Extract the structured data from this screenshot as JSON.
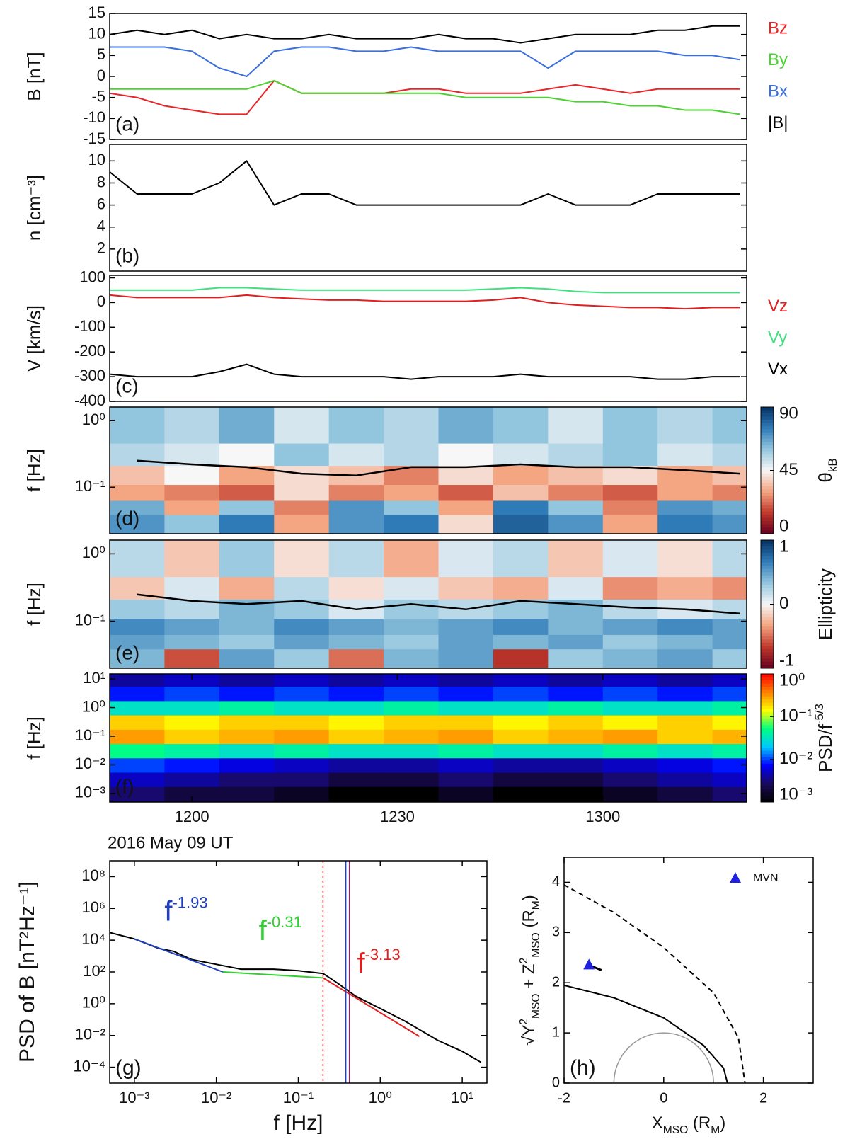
{
  "chart_data": [
    {
      "type": "line",
      "label": "(a)",
      "ylabel": "B [nT]",
      "xlim": [
        708,
        801
      ],
      "ylim": [
        -15,
        15
      ],
      "yticks": [
        -15,
        -10,
        -5,
        0,
        5,
        10,
        15
      ],
      "legend": "right",
      "x": [
        708,
        712,
        716,
        720,
        724,
        728,
        732,
        736,
        740,
        744,
        748,
        752,
        756,
        760,
        764,
        768,
        772,
        776,
        780,
        784,
        788,
        792,
        796,
        800
      ],
      "series": [
        {
          "name": "Bz",
          "color": "#e8262a",
          "values": [
            -4,
            -5,
            -7,
            -8,
            -9,
            -9,
            -1,
            -4,
            -4,
            -4,
            -4,
            -3,
            -3,
            -4,
            -4,
            -4,
            -3,
            -2,
            -3,
            -4,
            -3,
            -3,
            -3,
            -3
          ]
        },
        {
          "name": "By",
          "color": "#4cd232",
          "values": [
            -3,
            -3,
            -3,
            -3,
            -3,
            -3,
            -1,
            -4,
            -4,
            -4,
            -4,
            -4,
            -4,
            -5,
            -5,
            -5,
            -5,
            -6,
            -6,
            -7,
            -7,
            -8,
            -8,
            -9
          ]
        },
        {
          "name": "Bx",
          "color": "#3a6fe0",
          "values": [
            7,
            7,
            7,
            6,
            2,
            0,
            6,
            7,
            7,
            6,
            6,
            7,
            6,
            6,
            6,
            6,
            2,
            6,
            6,
            6,
            6,
            5,
            5,
            4
          ]
        },
        {
          "name": "|B|",
          "color": "#000000",
          "values": [
            10,
            11,
            10,
            11,
            9,
            10,
            9,
            9,
            10,
            9,
            9,
            9,
            10,
            9,
            9,
            8,
            9,
            10,
            10,
            10,
            11,
            11,
            12,
            12
          ]
        }
      ]
    },
    {
      "type": "line",
      "label": "(b)",
      "ylabel": "n [cm⁻³]",
      "xlim": [
        708,
        801
      ],
      "ylim": [
        0,
        11.5
      ],
      "yticks": [
        2,
        4,
        6,
        8,
        10
      ],
      "x": [
        708,
        712,
        716,
        720,
        724,
        728,
        732,
        736,
        740,
        744,
        748,
        752,
        756,
        760,
        764,
        768,
        772,
        776,
        780,
        784,
        788,
        792,
        796,
        800
      ],
      "series": [
        {
          "color": "#000000",
          "values": [
            9,
            7,
            7,
            7,
            8,
            10,
            6,
            7,
            7,
            6,
            6,
            6,
            6,
            6,
            6,
            6,
            7,
            6,
            6,
            6,
            7,
            7,
            7,
            7
          ]
        }
      ]
    },
    {
      "type": "line",
      "label": "(c)",
      "ylabel": "V [km/s]",
      "xlim": [
        708,
        801
      ],
      "ylim": [
        -400,
        110
      ],
      "yticks": [
        100,
        0,
        -100,
        -200,
        -300,
        -400
      ],
      "legend": "right",
      "x": [
        708,
        712,
        716,
        720,
        724,
        728,
        732,
        736,
        740,
        744,
        748,
        752,
        756,
        760,
        764,
        768,
        772,
        776,
        780,
        784,
        788,
        792,
        796,
        800
      ],
      "series": [
        {
          "name": "Vz",
          "color": "#e02020",
          "values": [
            30,
            20,
            20,
            20,
            20,
            30,
            20,
            15,
            10,
            10,
            5,
            5,
            5,
            5,
            10,
            20,
            0,
            -10,
            -15,
            -20,
            -20,
            -25,
            -20,
            -20
          ]
        },
        {
          "name": "Vy",
          "color": "#40e080",
          "values": [
            50,
            50,
            50,
            50,
            60,
            60,
            55,
            50,
            50,
            50,
            50,
            50,
            50,
            50,
            55,
            60,
            55,
            45,
            40,
            40,
            40,
            40,
            40,
            40
          ]
        },
        {
          "name": "Vx",
          "color": "#000000",
          "values": [
            -290,
            -300,
            -300,
            -300,
            -280,
            -250,
            -290,
            -300,
            -300,
            -300,
            -300,
            -310,
            -300,
            -300,
            -300,
            -290,
            -300,
            -300,
            -300,
            -300,
            -310,
            -310,
            -300,
            -300
          ]
        }
      ]
    },
    {
      "type": "heatmap",
      "label": "(d)",
      "ylabel": "f [Hz]",
      "xlim": [
        708,
        801
      ],
      "ylim": [
        0.02,
        1.6
      ],
      "ylog": true,
      "yticks": [
        {
          "value": 1,
          "label": "10⁰"
        },
        {
          "value": 0.1,
          "label": "10⁻¹"
        }
      ],
      "colormap": "RdBu",
      "zlim": [
        0,
        90
      ],
      "zticks": [
        0,
        45,
        90
      ],
      "zlabel": [
        {
          "text": "θ"
        },
        {
          "text": "kB",
          "sub": true
        }
      ],
      "x": [
        712,
        720,
        728,
        736,
        744,
        752,
        760,
        768,
        776,
        784,
        792,
        800
      ],
      "y": [
        0.03,
        0.05,
        0.08,
        0.15,
        0.3,
        0.7
      ],
      "z": [
        [
          70,
          60,
          75,
          30,
          70,
          75,
          40,
          80,
          70,
          30,
          75,
          70
        ],
        [
          65,
          30,
          60,
          25,
          70,
          60,
          30,
          75,
          60,
          25,
          70,
          65
        ],
        [
          30,
          25,
          20,
          40,
          25,
          30,
          20,
          35,
          25,
          20,
          30,
          25
        ],
        [
          35,
          45,
          30,
          40,
          35,
          25,
          40,
          30,
          35,
          40,
          30,
          35
        ],
        [
          55,
          50,
          45,
          60,
          50,
          55,
          45,
          50,
          55,
          60,
          50,
          55
        ],
        [
          60,
          55,
          65,
          50,
          60,
          55,
          65,
          60,
          50,
          60,
          55,
          60
        ]
      ],
      "lines": [
        {
          "color": "#000000",
          "values": [
            0.25,
            0.22,
            0.2,
            0.16,
            0.15,
            0.2,
            0.2,
            0.22,
            0.2,
            0.2,
            0.18,
            0.16
          ]
        }
      ]
    },
    {
      "type": "heatmap",
      "label": "(e)",
      "ylabel": "f [Hz]",
      "xlim": [
        708,
        801
      ],
      "ylim": [
        0.02,
        1.6
      ],
      "ylog": true,
      "yticks": [
        {
          "value": 1,
          "label": "10⁰"
        },
        {
          "value": 0.1,
          "label": "10⁻¹"
        }
      ],
      "colormap": "RdBu",
      "zlim": [
        -1,
        1
      ],
      "zticks": [
        -1,
        0,
        1
      ],
      "zlabel": "Ellipticity",
      "x": [
        712,
        720,
        728,
        736,
        744,
        752,
        760,
        768,
        776,
        784,
        792,
        800
      ],
      "y": [
        0.03,
        0.05,
        0.08,
        0.15,
        0.3,
        0.7
      ],
      "z": [
        [
          0.4,
          -0.6,
          0.5,
          0.3,
          -0.5,
          0.4,
          0.5,
          -0.7,
          0.3,
          0.4,
          0.5,
          0.3
        ],
        [
          0.5,
          0.4,
          0.3,
          0.5,
          0.4,
          0.3,
          0.5,
          0.4,
          0.5,
          0.3,
          0.4,
          0.5
        ],
        [
          0.6,
          0.5,
          0.4,
          0.6,
          0.5,
          0.4,
          0.5,
          0.6,
          0.4,
          0.5,
          0.6,
          0.5
        ],
        [
          0.3,
          0.2,
          0.4,
          0.3,
          0.1,
          0.3,
          0.2,
          0.3,
          0.4,
          0.2,
          0.1,
          0.2
        ],
        [
          -0.2,
          0.1,
          -0.3,
          0.2,
          -0.1,
          0.1,
          -0.2,
          -0.3,
          0.1,
          -0.4,
          -0.3,
          -0.4
        ],
        [
          0.2,
          -0.2,
          0.3,
          -0.1,
          0.2,
          -0.3,
          0.1,
          0.2,
          -0.2,
          0.1,
          -0.1,
          0.2
        ]
      ],
      "lines": [
        {
          "color": "#000000",
          "values": [
            0.25,
            0.2,
            0.18,
            0.2,
            0.15,
            0.18,
            0.15,
            0.2,
            0.18,
            0.16,
            0.15,
            0.13
          ]
        }
      ]
    },
    {
      "type": "heatmap",
      "label": "(f)",
      "ylabel": "f [Hz]",
      "xlim": [
        708,
        801
      ],
      "ylim": [
        0.0005,
        15
      ],
      "ylog": true,
      "yticks": [
        {
          "value": 10,
          "label": "10¹"
        },
        {
          "value": 1,
          "label": "10⁰"
        },
        {
          "value": 0.1,
          "label": "10⁻¹"
        },
        {
          "value": 0.01,
          "label": "10⁻²"
        },
        {
          "value": 0.001,
          "label": "10⁻³"
        }
      ],
      "xticks": [
        {
          "value": 720,
          "label": "1200"
        },
        {
          "value": 750,
          "label": "1230"
        },
        {
          "value": 780,
          "label": "1300"
        }
      ],
      "colormap": "jet",
      "zlog": true,
      "zlim": [
        0.001,
        1
      ],
      "zticks": [
        {
          "value": 1,
          "label": "10⁰"
        },
        {
          "value": 0.1,
          "label": "10⁻¹"
        },
        {
          "value": 0.01,
          "label": "10⁻²"
        },
        {
          "value": 0.001,
          "label": "10⁻³"
        }
      ],
      "zlabel": [
        {
          "text": "PSD/f"
        },
        {
          "text": "-5/3",
          "sup": true
        }
      ],
      "x": [
        712,
        720,
        728,
        736,
        744,
        752,
        760,
        768,
        776,
        784,
        792,
        800
      ],
      "y": [
        0.001,
        0.003,
        0.01,
        0.03,
        0.1,
        0.3,
        1,
        3,
        10
      ],
      "z": [
        [
          0.003,
          0.002,
          0.002,
          0.0015,
          0.001,
          0.001,
          0.0015,
          0.001,
          0.001,
          0.0015,
          0.002,
          0.003
        ],
        [
          0.005,
          0.004,
          0.003,
          0.003,
          0.002,
          0.002,
          0.003,
          0.002,
          0.002,
          0.003,
          0.004,
          0.005
        ],
        [
          0.01,
          0.008,
          0.006,
          0.005,
          0.004,
          0.004,
          0.005,
          0.004,
          0.004,
          0.005,
          0.006,
          0.008
        ],
        [
          0.05,
          0.04,
          0.03,
          0.04,
          0.03,
          0.03,
          0.04,
          0.03,
          0.03,
          0.04,
          0.03,
          0.04
        ],
        [
          0.3,
          0.2,
          0.25,
          0.3,
          0.2,
          0.25,
          0.3,
          0.2,
          0.25,
          0.3,
          0.2,
          0.25
        ],
        [
          0.2,
          0.15,
          0.2,
          0.2,
          0.15,
          0.2,
          0.2,
          0.15,
          0.2,
          0.15,
          0.2,
          0.15
        ],
        [
          0.03,
          0.03,
          0.04,
          0.03,
          0.03,
          0.04,
          0.03,
          0.03,
          0.04,
          0.03,
          0.03,
          0.04
        ],
        [
          0.008,
          0.01,
          0.008,
          0.01,
          0.008,
          0.01,
          0.008,
          0.01,
          0.008,
          0.01,
          0.008,
          0.01
        ],
        [
          0.004,
          0.005,
          0.004,
          0.005,
          0.004,
          0.005,
          0.004,
          0.005,
          0.004,
          0.005,
          0.004,
          0.005
        ]
      ]
    },
    {
      "type": "line",
      "title": "2016 May 09 UT",
      "label": "(g)",
      "xlabel": "f [Hz]",
      "ylabel": "PSD of B [nT²Hz⁻¹]",
      "xlog": true,
      "ylog": true,
      "xlim": [
        0.0005,
        20
      ],
      "ylim": [
        1e-05,
        1000000000
      ],
      "xticks": [
        {
          "value": 0.001,
          "label": "10⁻³"
        },
        {
          "value": 0.01,
          "label": "10⁻²"
        },
        {
          "value": 0.1,
          "label": "10⁻¹"
        },
        {
          "value": 1,
          "label": "10⁰"
        },
        {
          "value": 10,
          "label": "10¹"
        }
      ],
      "yticks": [
        {
          "value": 0.0001,
          "label": "10⁻⁴"
        },
        {
          "value": 0.01,
          "label": "10⁻²"
        },
        {
          "value": 1,
          "label": "10⁰"
        },
        {
          "value": 100,
          "label": "10²"
        },
        {
          "value": 10000,
          "label": "10⁴"
        },
        {
          "value": 1000000,
          "label": "10⁶"
        },
        {
          "value": 100000000,
          "label": "10⁸"
        }
      ],
      "series": [
        {
          "color": "#000000",
          "x": [
            0.0005,
            0.001,
            0.002,
            0.003,
            0.005,
            0.01,
            0.02,
            0.05,
            0.1,
            0.2,
            0.3,
            0.5,
            1,
            2,
            5,
            10,
            17
          ],
          "values": [
            30000,
            12000,
            3000,
            2000,
            600,
            300,
            150,
            150,
            120,
            80,
            20,
            3,
            0.5,
            0.08,
            0.005,
            0.001,
            0.0002
          ]
        },
        {
          "color": "#2040c0",
          "x": [
            0.001,
            0.012
          ],
          "values": [
            12000,
            100
          ],
          "label": {
            "base": "f",
            "exponent": "-1.93"
          }
        },
        {
          "color": "#30d030",
          "x": [
            0.012,
            0.2
          ],
          "values": [
            100,
            42
          ],
          "label": {
            "base": "f",
            "exponent": "-0.31"
          }
        },
        {
          "color": "#e02020",
          "x": [
            0.2,
            3
          ],
          "values": [
            42,
            0.0087
          ],
          "label": {
            "base": "f",
            "exponent": "-3.13"
          }
        }
      ],
      "vlines": [
        {
          "x": 0.2,
          "color": "#e02020",
          "dash": "dotted"
        },
        {
          "x": 0.38,
          "color": "#2040c0"
        },
        {
          "x": 0.42,
          "color": "#a02060"
        }
      ]
    },
    {
      "type": "scatter",
      "label": "(h)",
      "xlim": [
        -2,
        3
      ],
      "ylim": [
        0,
        4.5
      ],
      "xticks": [
        -2,
        0,
        2
      ],
      "yticks": [
        0,
        1,
        2,
        3,
        4
      ],
      "xlabel": [
        {
          "text": "X"
        },
        {
          "text": "MSO",
          "sub": true
        },
        {
          "text": " (R"
        },
        {
          "text": "M",
          "sub": true
        },
        {
          "text": ")"
        }
      ],
      "ylabel": [
        {
          "text": "√"
        },
        {
          "text": "Y"
        },
        {
          "text": "2",
          "sup": true
        },
        {
          "text": "MSO",
          "sub": true
        },
        {
          "text": " + Z"
        },
        {
          "text": "2",
          "sup": true
        },
        {
          "text": "MSO",
          "sub": true
        },
        {
          "text": " (R"
        },
        {
          "text": "M",
          "sub": true
        },
        {
          "text": ")"
        }
      ],
      "curves": [
        {
          "x": [
            -2,
            -1,
            0,
            1,
            1.5,
            1.63
          ],
          "y": [
            3.95,
            3.4,
            2.7,
            1.8,
            0.9,
            0
          ],
          "dash": "dashed"
        },
        {
          "x": [
            -2,
            -1,
            0,
            0.8,
            1.2,
            1.28
          ],
          "y": [
            1.95,
            1.7,
            1.3,
            0.75,
            0.3,
            0
          ]
        }
      ],
      "planet_radius": 1,
      "orbit": {
        "x": [
          -1.5,
          -1.25
        ],
        "y": [
          2.35,
          2.25
        ]
      },
      "points": {
        "name": "MVN",
        "color": "#2020e0",
        "x": [
          -1.5
        ],
        "y": [
          2.35
        ]
      }
    }
  ]
}
